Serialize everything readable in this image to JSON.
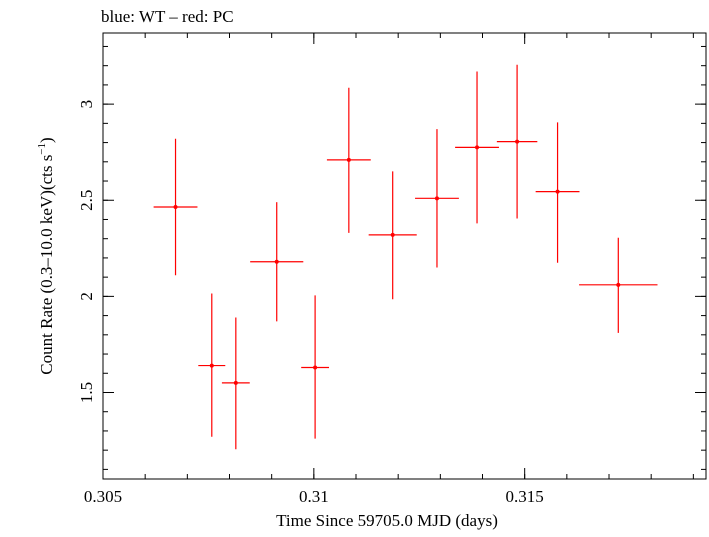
{
  "chart_data": {
    "type": "scatter",
    "title": "blue: WT – red: PC",
    "xlabel": "Time Since 59705.0 MJD (days)",
    "ylabel_main": "Count Rate (0.3–10.0 keV)(cts s",
    "ylabel_sup": "−1",
    "ylabel_close": ")",
    "xlim": [
      0.305,
      0.3193
    ],
    "ylim": [
      1.05,
      3.37
    ],
    "x_ticks": [
      {
        "value": 0.305,
        "label": "0.305"
      },
      {
        "value": 0.31,
        "label": "0.31"
      },
      {
        "value": 0.315,
        "label": "0.315"
      }
    ],
    "x_minor_step": 0.001,
    "y_ticks": [
      {
        "value": 1.5,
        "label": "1.5"
      },
      {
        "value": 2.0,
        "label": "2"
      },
      {
        "value": 2.5,
        "label": "2.5"
      },
      {
        "value": 3.0,
        "label": "3"
      }
    ],
    "y_minor_step": 0.1,
    "grid": false,
    "series": [
      {
        "color": "#ff0000",
        "points": [
          {
            "x": 0.30672,
            "xerr": 0.00052,
            "y": 2.465,
            "yerr_low": 0.355,
            "yerr_high": 0.355
          },
          {
            "x": 0.30758,
            "xerr": 0.00032,
            "y": 1.64,
            "yerr_low": 0.37,
            "yerr_high": 0.375
          },
          {
            "x": 0.30815,
            "xerr": 0.00033,
            "y": 1.55,
            "yerr_low": 0.345,
            "yerr_high": 0.34
          },
          {
            "x": 0.30912,
            "xerr": 0.00063,
            "y": 2.18,
            "yerr_low": 0.31,
            "yerr_high": 0.31
          },
          {
            "x": 0.31003,
            "xerr": 0.00033,
            "y": 1.63,
            "yerr_low": 0.37,
            "yerr_high": 0.375
          },
          {
            "x": 0.31083,
            "xerr": 0.00052,
            "y": 2.71,
            "yerr_low": 0.38,
            "yerr_high": 0.375
          },
          {
            "x": 0.31187,
            "xerr": 0.00057,
            "y": 2.32,
            "yerr_low": 0.335,
            "yerr_high": 0.33
          },
          {
            "x": 0.31292,
            "xerr": 0.00052,
            "y": 2.51,
            "yerr_low": 0.36,
            "yerr_high": 0.36
          },
          {
            "x": 0.31387,
            "xerr": 0.00052,
            "y": 2.775,
            "yerr_low": 0.395,
            "yerr_high": 0.395
          },
          {
            "x": 0.31482,
            "xerr": 0.00048,
            "y": 2.805,
            "yerr_low": 0.4,
            "yerr_high": 0.4
          },
          {
            "x": 0.31578,
            "xerr": 0.00052,
            "y": 2.545,
            "yerr_low": 0.37,
            "yerr_high": 0.36
          },
          {
            "x": 0.31722,
            "xerr": 0.00093,
            "y": 2.06,
            "yerr_low": 0.25,
            "yerr_high": 0.245
          }
        ]
      }
    ]
  }
}
